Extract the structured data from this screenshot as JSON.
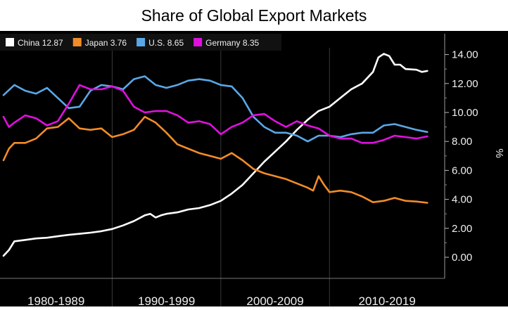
{
  "chart_data": {
    "type": "line",
    "title": "Share of Global Export Markets",
    "ylabel": "%",
    "ylim": [
      -1.0,
      15.5
    ],
    "y_ticks": [
      "0.00",
      "2.00",
      "4.00",
      "6.00",
      "8.00",
      "10.00",
      "12.00",
      "14.00"
    ],
    "y_tick_values": [
      0,
      2,
      4,
      6,
      8,
      10,
      12,
      14
    ],
    "x_range": [
      1980,
      2019.5
    ],
    "x_periods": [
      "1980-1989",
      "1990-1999",
      "2000-2009",
      "2010-2019"
    ],
    "x_period_bounds": [
      1980,
      1990,
      2000,
      2010,
      2020
    ],
    "legend_position": "top-left",
    "background": "#000000",
    "series": [
      {
        "name": "China",
        "legend_value": "12.87",
        "color": "#ffffff",
        "points": [
          [
            1980,
            0.1
          ],
          [
            1980.5,
            0.5
          ],
          [
            1981,
            1.1
          ],
          [
            1982,
            1.2
          ],
          [
            1983,
            1.3
          ],
          [
            1984,
            1.35
          ],
          [
            1985,
            1.45
          ],
          [
            1986,
            1.55
          ],
          [
            1987,
            1.62
          ],
          [
            1988,
            1.7
          ],
          [
            1989,
            1.8
          ],
          [
            1990,
            1.95
          ],
          [
            1991,
            2.2
          ],
          [
            1992,
            2.5
          ],
          [
            1993,
            2.9
          ],
          [
            1993.5,
            3.0
          ],
          [
            1994,
            2.75
          ],
          [
            1994.5,
            2.9
          ],
          [
            1995,
            3.0
          ],
          [
            1996,
            3.1
          ],
          [
            1997,
            3.3
          ],
          [
            1998,
            3.4
          ],
          [
            1999,
            3.6
          ],
          [
            2000,
            3.9
          ],
          [
            2001,
            4.4
          ],
          [
            2002,
            5.0
          ],
          [
            2003,
            5.8
          ],
          [
            2004,
            6.6
          ],
          [
            2005,
            7.3
          ],
          [
            2006,
            8.0
          ],
          [
            2007,
            8.8
          ],
          [
            2008,
            9.5
          ],
          [
            2009,
            10.1
          ],
          [
            2010,
            10.4
          ],
          [
            2011,
            11.0
          ],
          [
            2012,
            11.6
          ],
          [
            2013,
            12.0
          ],
          [
            2014,
            12.8
          ],
          [
            2014.5,
            13.8
          ],
          [
            2015,
            14.05
          ],
          [
            2015.5,
            13.9
          ],
          [
            2016,
            13.3
          ],
          [
            2016.5,
            13.3
          ],
          [
            2017,
            13.0
          ],
          [
            2018,
            12.95
          ],
          [
            2018.5,
            12.8
          ],
          [
            2019,
            12.87
          ]
        ]
      },
      {
        "name": "Japan",
        "legend_value": "3.76",
        "color": "#f28c28",
        "points": [
          [
            1980,
            6.7
          ],
          [
            1980.5,
            7.5
          ],
          [
            1981,
            7.9
          ],
          [
            1982,
            7.9
          ],
          [
            1983,
            8.2
          ],
          [
            1984,
            8.9
          ],
          [
            1985,
            9.0
          ],
          [
            1986,
            9.6
          ],
          [
            1987,
            8.9
          ],
          [
            1988,
            8.8
          ],
          [
            1989,
            8.9
          ],
          [
            1990,
            8.3
          ],
          [
            1991,
            8.5
          ],
          [
            1992,
            8.8
          ],
          [
            1993,
            9.7
          ],
          [
            1994,
            9.3
          ],
          [
            1995,
            8.6
          ],
          [
            1996,
            7.8
          ],
          [
            1997,
            7.5
          ],
          [
            1998,
            7.2
          ],
          [
            1999,
            7.0
          ],
          [
            2000,
            6.8
          ],
          [
            2001,
            7.2
          ],
          [
            2002,
            6.7
          ],
          [
            2003,
            6.1
          ],
          [
            2004,
            5.8
          ],
          [
            2005,
            5.6
          ],
          [
            2006,
            5.4
          ],
          [
            2007,
            5.1
          ],
          [
            2008,
            4.8
          ],
          [
            2008.5,
            4.6
          ],
          [
            2009,
            5.6
          ],
          [
            2009.5,
            5.0
          ],
          [
            2010,
            4.5
          ],
          [
            2011,
            4.6
          ],
          [
            2012,
            4.5
          ],
          [
            2013,
            4.2
          ],
          [
            2014,
            3.8
          ],
          [
            2015,
            3.9
          ],
          [
            2016,
            4.1
          ],
          [
            2017,
            3.9
          ],
          [
            2018,
            3.85
          ],
          [
            2019,
            3.76
          ]
        ]
      },
      {
        "name": "U.S.",
        "legend_value": "8.65",
        "color": "#5aa8e6",
        "points": [
          [
            1980,
            11.2
          ],
          [
            1981,
            11.9
          ],
          [
            1982,
            11.5
          ],
          [
            1983,
            11.3
          ],
          [
            1984,
            11.7
          ],
          [
            1985,
            11.0
          ],
          [
            1986,
            10.3
          ],
          [
            1987,
            10.4
          ],
          [
            1988,
            11.5
          ],
          [
            1989,
            11.9
          ],
          [
            1990,
            11.8
          ],
          [
            1991,
            11.6
          ],
          [
            1992,
            12.3
          ],
          [
            1993,
            12.5
          ],
          [
            1994,
            11.9
          ],
          [
            1995,
            11.7
          ],
          [
            1996,
            11.9
          ],
          [
            1997,
            12.2
          ],
          [
            1998,
            12.3
          ],
          [
            1999,
            12.2
          ],
          [
            2000,
            11.9
          ],
          [
            2001,
            11.8
          ],
          [
            2002,
            11.0
          ],
          [
            2003,
            9.7
          ],
          [
            2004,
            9.0
          ],
          [
            2005,
            8.6
          ],
          [
            2006,
            8.6
          ],
          [
            2007,
            8.4
          ],
          [
            2008,
            8.0
          ],
          [
            2009,
            8.4
          ],
          [
            2010,
            8.4
          ],
          [
            2011,
            8.3
          ],
          [
            2012,
            8.5
          ],
          [
            2013,
            8.6
          ],
          [
            2014,
            8.6
          ],
          [
            2015,
            9.1
          ],
          [
            2016,
            9.2
          ],
          [
            2017,
            9.0
          ],
          [
            2018,
            8.8
          ],
          [
            2019,
            8.65
          ]
        ]
      },
      {
        "name": "Germany",
        "legend_value": "8.35",
        "color": "#e010e0",
        "points": [
          [
            1980,
            9.7
          ],
          [
            1980.5,
            9.0
          ],
          [
            1981,
            9.3
          ],
          [
            1982,
            9.8
          ],
          [
            1983,
            9.6
          ],
          [
            1984,
            9.1
          ],
          [
            1985,
            9.4
          ],
          [
            1986,
            10.6
          ],
          [
            1987,
            11.9
          ],
          [
            1988,
            11.6
          ],
          [
            1989,
            11.6
          ],
          [
            1990,
            11.8
          ],
          [
            1991,
            11.5
          ],
          [
            1992,
            10.4
          ],
          [
            1993,
            10.0
          ],
          [
            1994,
            10.1
          ],
          [
            1995,
            10.1
          ],
          [
            1996,
            9.8
          ],
          [
            1997,
            9.3
          ],
          [
            1998,
            9.4
          ],
          [
            1999,
            9.2
          ],
          [
            2000,
            8.5
          ],
          [
            2001,
            9.0
          ],
          [
            2002,
            9.3
          ],
          [
            2003,
            9.8
          ],
          [
            2004,
            9.9
          ],
          [
            2005,
            9.4
          ],
          [
            2006,
            9.0
          ],
          [
            2007,
            9.4
          ],
          [
            2008,
            9.1
          ],
          [
            2009,
            8.9
          ],
          [
            2010,
            8.4
          ],
          [
            2011,
            8.2
          ],
          [
            2012,
            8.2
          ],
          [
            2013,
            7.9
          ],
          [
            2014,
            7.9
          ],
          [
            2015,
            8.1
          ],
          [
            2016,
            8.4
          ],
          [
            2017,
            8.3
          ],
          [
            2018,
            8.2
          ],
          [
            2019,
            8.35
          ]
        ]
      }
    ]
  }
}
